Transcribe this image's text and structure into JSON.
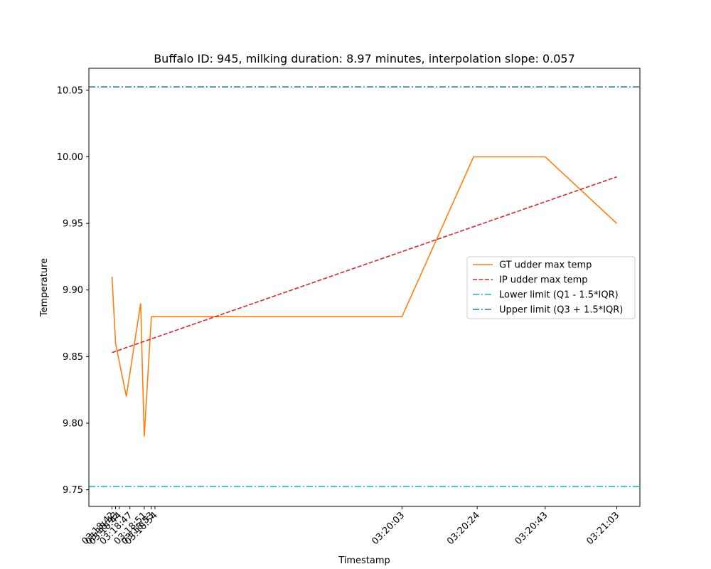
{
  "chart_data": {
    "type": "line",
    "title": "Buffalo ID: 945, milking duration: 8.97 minutes, interpolation slope: 0.057",
    "xlabel": "Timestamp",
    "ylabel": "Temperature",
    "xlim_seconds": [
      -6.46,
      147.46
    ],
    "x_ticks": [
      {
        "label": "03:18:42",
        "t": 0
      },
      {
        "label": "03:18:43",
        "t": 1
      },
      {
        "label": "03:18:44",
        "t": 2
      },
      {
        "label": "03:18:47",
        "t": 5
      },
      {
        "label": "03:18:51",
        "t": 9
      },
      {
        "label": "03:18:53",
        "t": 11
      },
      {
        "label": "03:18:54",
        "t": 12
      },
      {
        "label": "03:20:03",
        "t": 81
      },
      {
        "label": "03:20:24",
        "t": 102
      },
      {
        "label": "03:20:43",
        "t": 121
      },
      {
        "label": "03:21:03",
        "t": 141
      }
    ],
    "ylim": [
      9.7375,
      10.0665
    ],
    "y_ticks": [
      "9.75",
      "9.80",
      "9.85",
      "9.90",
      "9.95",
      "10.00",
      "10.05"
    ],
    "legend_position": "center-right",
    "series": [
      {
        "name": "GT udder max temp",
        "style": "solid",
        "color": "#ff7f0e",
        "t": [
          0,
          1,
          4,
          8,
          9,
          11,
          12,
          81,
          101,
          121,
          141
        ],
        "values": [
          9.91,
          9.86,
          9.82,
          9.89,
          9.79,
          9.88,
          9.88,
          9.88,
          10.0,
          10.0,
          9.95
        ]
      },
      {
        "name": "IP udder max temp",
        "style": "dashed",
        "color": "#d62728",
        "t": [
          0,
          141
        ],
        "values": [
          9.853,
          9.985
        ]
      },
      {
        "name": "Lower limit (Q1 - 1.5*IQR)",
        "style": "dashdot",
        "color": "#17becf",
        "value": 9.7525
      },
      {
        "name": "Upper limit (Q3 + 1.5*IQR)",
        "style": "dashdot",
        "color": "#1f77b4",
        "value": 10.0525
      }
    ]
  }
}
